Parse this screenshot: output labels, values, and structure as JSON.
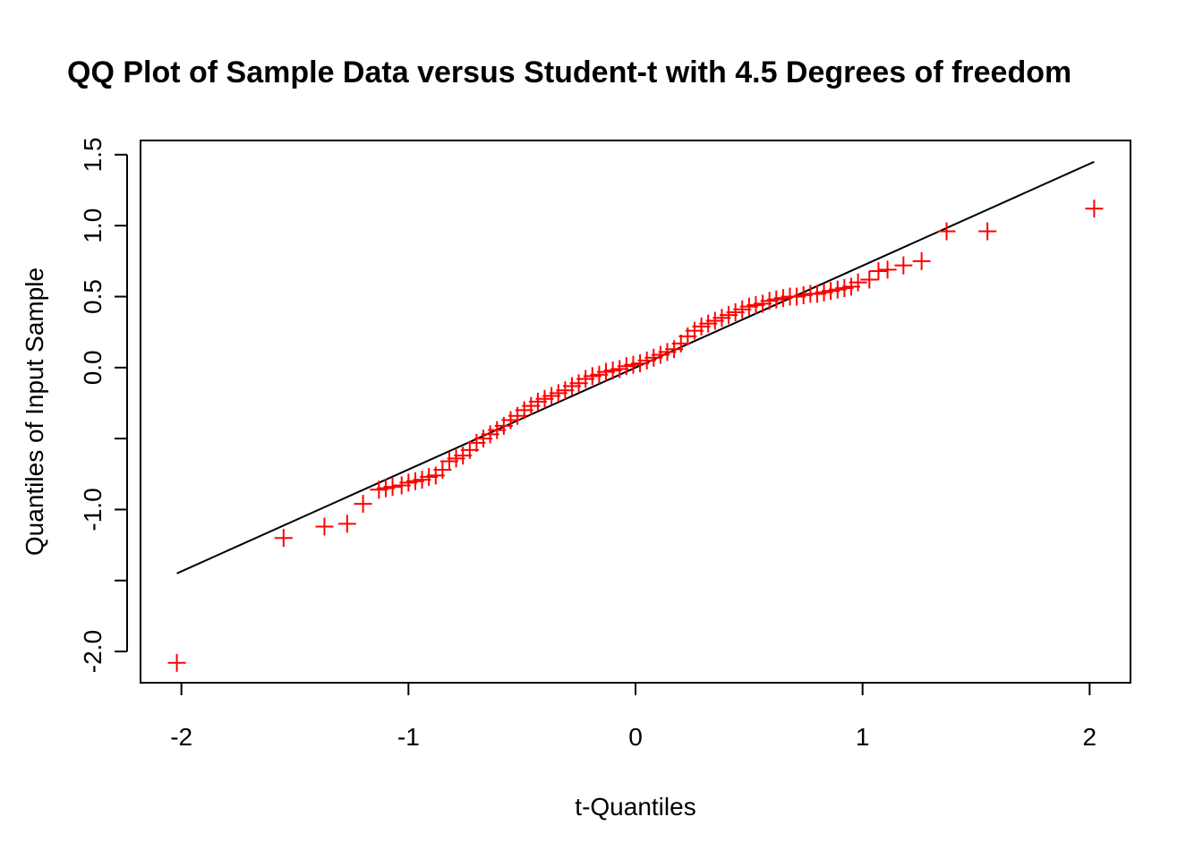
{
  "chart_data": {
    "type": "scatter",
    "title": "QQ Plot of Sample Data versus Student-t with  4.5 Degrees of freedom",
    "xlabel": "t-Quantiles",
    "ylabel": "Quantiles of Input Sample",
    "xlim": [
      -2.18,
      2.18
    ],
    "ylim": [
      -2.22,
      1.6
    ],
    "x_ticks": [
      -2,
      -1,
      0,
      1,
      2
    ],
    "x_tick_labels": [
      "-2",
      "-1",
      "0",
      "1",
      "2"
    ],
    "y_ticks": [
      -2.0,
      -1.5,
      -1.0,
      -0.5,
      0.0,
      0.5,
      1.0,
      1.5
    ],
    "y_tick_labels": [
      "-2.0",
      "",
      "-1.0",
      "",
      "0.0",
      "0.5",
      "1.0",
      "1.5"
    ],
    "grid": false,
    "reference_line": {
      "x": [
        -2.02,
        2.02
      ],
      "y": [
        -1.45,
        1.45
      ],
      "color": "#000000"
    },
    "series": [
      {
        "marker": "plus",
        "color": "#ff0000",
        "x": [
          -2.02,
          -1.55,
          -1.37,
          -1.27,
          -1.2,
          -1.13,
          -1.1,
          -1.07,
          -1.03,
          -1.0,
          -0.97,
          -0.94,
          -0.91,
          -0.88,
          -0.85,
          -0.82,
          -0.79,
          -0.76,
          -0.73,
          -0.7,
          -0.67,
          -0.64,
          -0.61,
          -0.58,
          -0.55,
          -0.52,
          -0.49,
          -0.46,
          -0.43,
          -0.4,
          -0.37,
          -0.34,
          -0.31,
          -0.28,
          -0.25,
          -0.22,
          -0.19,
          -0.16,
          -0.13,
          -0.1,
          -0.07,
          -0.04,
          -0.01,
          0.02,
          0.05,
          0.08,
          0.11,
          0.14,
          0.17,
          0.2,
          0.23,
          0.26,
          0.29,
          0.32,
          0.35,
          0.38,
          0.41,
          0.44,
          0.47,
          0.5,
          0.53,
          0.56,
          0.59,
          0.62,
          0.65,
          0.68,
          0.71,
          0.74,
          0.77,
          0.8,
          0.83,
          0.86,
          0.89,
          0.92,
          0.95,
          0.98,
          1.03,
          1.07,
          1.11,
          1.18,
          1.26,
          1.37,
          1.55,
          2.02
        ],
        "y": [
          -2.08,
          -1.2,
          -1.12,
          -1.1,
          -0.96,
          -0.86,
          -0.85,
          -0.84,
          -0.83,
          -0.81,
          -0.8,
          -0.79,
          -0.77,
          -0.76,
          -0.72,
          -0.66,
          -0.64,
          -0.62,
          -0.58,
          -0.53,
          -0.5,
          -0.47,
          -0.44,
          -0.41,
          -0.37,
          -0.34,
          -0.3,
          -0.27,
          -0.24,
          -0.22,
          -0.2,
          -0.18,
          -0.16,
          -0.13,
          -0.11,
          -0.08,
          -0.06,
          -0.05,
          -0.03,
          -0.02,
          -0.01,
          0.01,
          0.02,
          0.03,
          0.05,
          0.07,
          0.09,
          0.11,
          0.13,
          0.17,
          0.22,
          0.26,
          0.29,
          0.31,
          0.33,
          0.35,
          0.37,
          0.39,
          0.41,
          0.43,
          0.44,
          0.45,
          0.47,
          0.48,
          0.49,
          0.5,
          0.5,
          0.51,
          0.52,
          0.52,
          0.53,
          0.54,
          0.55,
          0.56,
          0.57,
          0.6,
          0.62,
          0.68,
          0.69,
          0.72,
          0.75,
          0.96,
          0.96,
          1.12
        ]
      }
    ]
  }
}
